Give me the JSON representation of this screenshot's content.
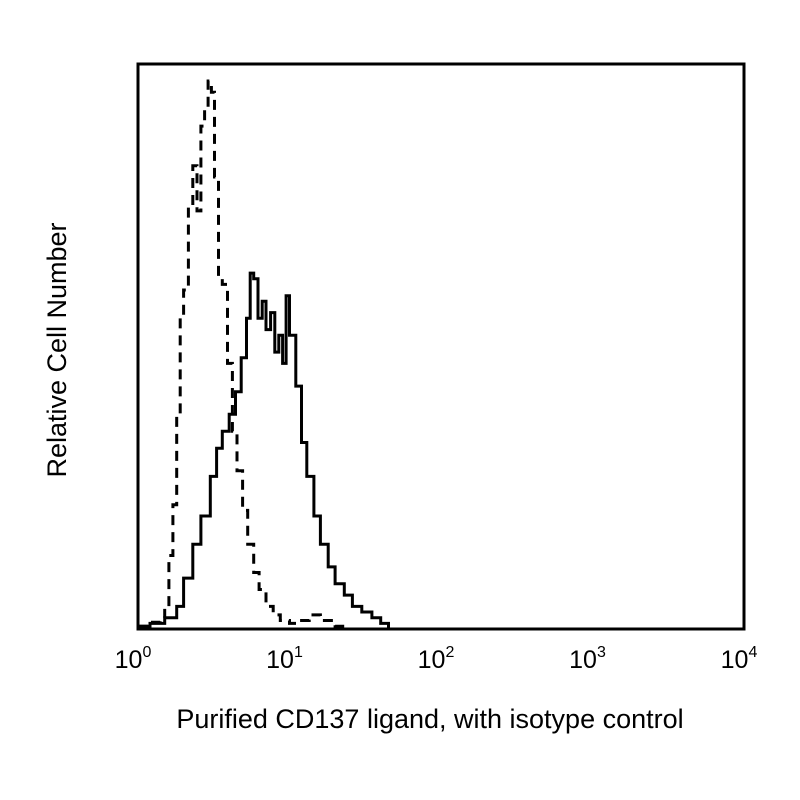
{
  "chart_data": {
    "type": "area",
    "title": "",
    "xlabel": "Purified CD137 ligand, with isotype control",
    "ylabel": "Relative Cell Number",
    "x_scale": "log",
    "xlim": [
      1,
      10000
    ],
    "ylim": [
      0,
      100
    ],
    "grid": false,
    "x_ticks": [
      {
        "base": "10",
        "exp": "0",
        "value": 1
      },
      {
        "base": "10",
        "exp": "1",
        "value": 10
      },
      {
        "base": "10",
        "exp": "2",
        "value": 100
      },
      {
        "base": "10",
        "exp": "3",
        "value": 1000
      },
      {
        "base": "10",
        "exp": "4",
        "value": 10000
      }
    ],
    "series": [
      {
        "line_style": "dashed",
        "x": [
          1.0,
          1.2,
          1.4,
          1.5,
          1.6,
          1.7,
          1.8,
          1.9,
          2.0,
          2.15,
          2.3,
          2.45,
          2.6,
          2.75,
          2.9,
          3.05,
          3.2,
          3.4,
          3.6,
          3.9,
          4.2,
          4.5,
          4.9,
          5.3,
          5.8,
          6.3,
          7.0,
          7.8,
          8.7,
          10.0,
          11.5,
          13.5,
          16.0,
          20.0,
          25.0
        ],
        "y": [
          0.5,
          1.2,
          2.0,
          4.0,
          13.0,
          22.0,
          38.0,
          55.0,
          60.0,
          75.0,
          82.0,
          74.0,
          89.0,
          92.0,
          97.0,
          95.0,
          80.0,
          62.0,
          61.0,
          47.0,
          35.0,
          28.0,
          21.0,
          15.0,
          10.0,
          7.0,
          4.0,
          2.5,
          1.5,
          1.0,
          1.5,
          2.5,
          1.5,
          0.5,
          0.0
        ]
      },
      {
        "line_style": "solid",
        "x": [
          1.0,
          1.2,
          1.5,
          1.8,
          2.0,
          2.3,
          2.6,
          3.0,
          3.3,
          3.6,
          4.0,
          4.4,
          4.8,
          5.2,
          5.5,
          5.8,
          6.2,
          6.6,
          7.0,
          7.5,
          8.0,
          8.5,
          9.0,
          9.5,
          10.0,
          11.0,
          12.0,
          13.0,
          14.5,
          16.0,
          18.0,
          20.0,
          23.0,
          26.0,
          30.0,
          35.0,
          40.0,
          45.0
        ],
        "y": [
          0.5,
          1.0,
          2.0,
          4.0,
          9.0,
          15.0,
          20.0,
          27.0,
          32.0,
          35.0,
          38.0,
          42.0,
          48.0,
          55.0,
          63.0,
          62.0,
          55.0,
          58.0,
          53.0,
          56.0,
          49.0,
          52.0,
          47.0,
          59.0,
          52.0,
          43.0,
          33.0,
          27.0,
          20.0,
          15.0,
          11.0,
          8.0,
          6.0,
          4.0,
          3.0,
          2.0,
          1.0,
          0.0
        ]
      }
    ]
  }
}
